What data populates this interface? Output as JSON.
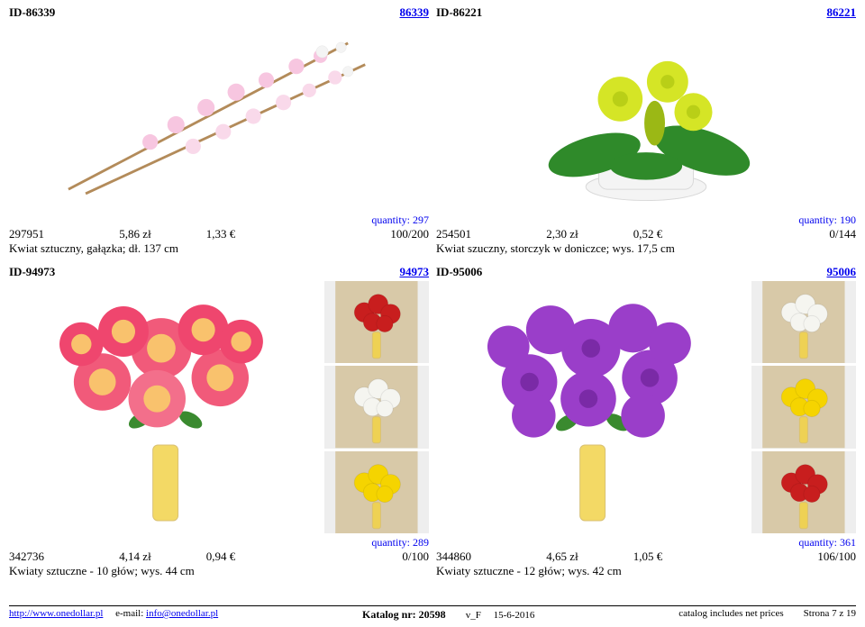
{
  "row1": {
    "left": {
      "idLabel": "ID-86339",
      "link": "86339",
      "photoHeight": 210,
      "quantity": "quantity: 297",
      "sku": "297951",
      "price_zl": "5,86 zł",
      "price_eur": "1,33 €",
      "pack": "100/200",
      "desc": "Kwiat sztuczny, gałązka; dł. 137 cm"
    },
    "right": {
      "idLabel": "ID-86221",
      "link": "86221",
      "photoHeight": 210,
      "quantity": "quantity: 190",
      "sku": "254501",
      "price_zl": "2,30 zł",
      "price_eur": "0,52 €",
      "pack": "0/144",
      "desc": "Kwiat szuczny, storczyk w doniczce; wys. 17,5 cm"
    }
  },
  "row2": {
    "left": {
      "idLabel": "ID-94973",
      "link": "94973",
      "photoHeight": 280,
      "quantity": "quantity: 289",
      "sku": "342736",
      "price_zl": "4,14 zł",
      "price_eur": "0,94 €",
      "pack": "0/100",
      "desc": "Kwiaty sztuczne - 10 głów; wys. 44 cm",
      "thumbColors": [
        "#c81e1e",
        "#f5f5f0",
        "#f5d400"
      ]
    },
    "right": {
      "idLabel": "ID-95006",
      "link": "95006",
      "photoHeight": 280,
      "quantity": "quantity: 361",
      "sku": "344860",
      "price_zl": "4,65 zł",
      "price_eur": "1,05 €",
      "pack": "106/100",
      "desc": "Kwiaty sztuczne - 12 głów; wys. 42 cm",
      "thumbColors": [
        "#f5f5f0",
        "#f5d400",
        "#c81e1e"
      ]
    }
  },
  "footer": {
    "url": "http://www.onedollar.pl",
    "emailLabel": "e-mail: ",
    "email": "info@onedollar.pl",
    "katalogLabel": "Katalog nr: 20598",
    "ver": "v_F",
    "date": "15-6-2016",
    "right1": "catalog includes net prices",
    "right2": "Strona 7 z 19"
  },
  "colors": {
    "link": "#0000ee",
    "row1LeftFlower1": "#f7c6e0",
    "row1LeftFlower2": "#f4f4f4",
    "row1LeftStem": "#b38b5a",
    "row1RightPetals": "#d5e526",
    "row1RightLeaves": "#2f8a2a",
    "row1RightPot": "#f4f4f4",
    "row2LeftMain": "#f15a7a",
    "row2LeftInner": "#f9c26d",
    "row2RightMain": "#9a3ec9",
    "vaseFill": "#f1d24a",
    "thumbBg": "#d8c9a8"
  }
}
